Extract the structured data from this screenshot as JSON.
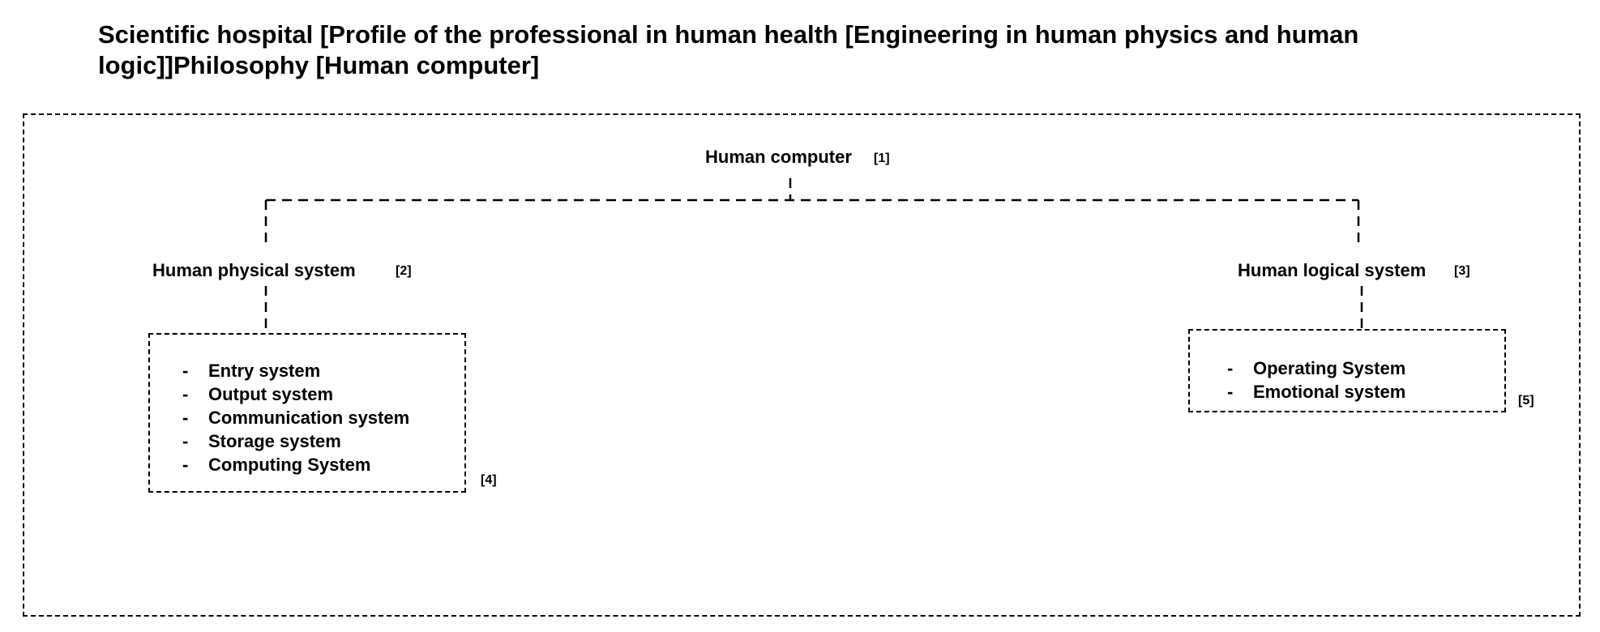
{
  "title": "Scientific hospital [Profile of the professional in human health [Engineering in human physics and human logic]]Philosophy [Human computer]",
  "nodes": {
    "root": {
      "label": "Human computer",
      "ref": "[1]"
    },
    "physical": {
      "label": "Human physical system",
      "ref": "[2]"
    },
    "logical": {
      "label": "Human logical system",
      "ref": "[3]"
    }
  },
  "physical_list": {
    "ref": "[4]",
    "items": [
      "Entry system",
      "Output system",
      "Communication system",
      "Storage system",
      "Computing System"
    ]
  },
  "logical_list": {
    "ref": "[5]",
    "items": [
      "Operating System",
      "Emotional system"
    ]
  },
  "bullet": "-"
}
